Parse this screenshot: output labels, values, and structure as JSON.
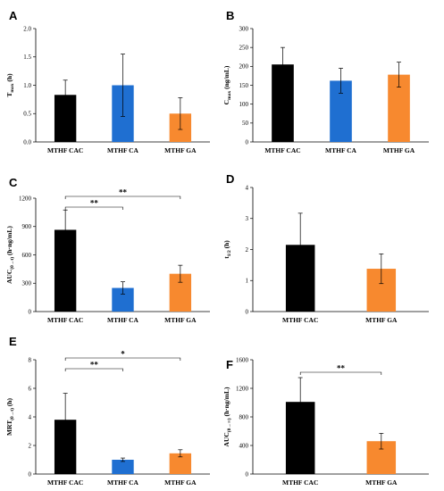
{
  "colors": {
    "MTHF CAC": "#000000",
    "MTHF CA": "#1f6fd1",
    "MTHF GA": "#f7892f"
  },
  "chart_data": [
    {
      "label": "A",
      "type": "bar",
      "categories": [
        "MTHF CAC",
        "MTHF CA",
        "MTHF GA"
      ],
      "values": [
        0.83,
        1.0,
        0.5
      ],
      "errors": [
        0.26,
        0.55,
        0.28
      ],
      "ylabel": "T",
      "ylabel_sub": "max",
      "ylabel_unit": " (h)",
      "ylim": [
        0,
        2.0
      ],
      "yticks": [
        "0.0",
        "0.5",
        "1.0",
        "1.5",
        "2.0"
      ],
      "significance": []
    },
    {
      "label": "B",
      "type": "bar",
      "categories": [
        "MTHF CAC",
        "MTHF CA",
        "MTHF GA"
      ],
      "values": [
        205,
        162,
        178
      ],
      "errors": [
        45,
        33,
        33
      ],
      "ylabel": "C",
      "ylabel_sub": "max",
      "ylabel_unit": " (ng/mL)",
      "ylim": [
        0,
        300
      ],
      "yticks": [
        "0",
        "50",
        "100",
        "150",
        "200",
        "250",
        "300"
      ],
      "significance": []
    },
    {
      "label": "C",
      "type": "bar",
      "categories": [
        "MTHF CAC",
        "MTHF CA",
        "MTHF GA"
      ],
      "values": [
        865,
        250,
        400
      ],
      "errors": [
        210,
        65,
        90
      ],
      "ylabel": "AUC",
      "ylabel_sub": "(0→t)",
      "ylabel_unit": " (h·ng/mL)",
      "ylim": [
        0,
        1200
      ],
      "yticks": [
        "0",
        "300",
        "600",
        "900",
        "1200"
      ],
      "significance": [
        {
          "from": 0,
          "to": 1,
          "label": "**",
          "level": 1
        },
        {
          "from": 0,
          "to": 2,
          "label": "**",
          "level": 2
        }
      ]
    },
    {
      "label": "D",
      "type": "bar",
      "categories": [
        "MTHF CAC",
        "MTHF GA"
      ],
      "values": [
        2.15,
        1.38
      ],
      "errors": [
        1.02,
        0.48
      ],
      "ylabel": "t",
      "ylabel_sub": "1/2",
      "ylabel_unit": " (h)",
      "ylim": [
        0,
        4
      ],
      "yticks": [
        "0",
        "1",
        "2",
        "3",
        "4"
      ],
      "significance": []
    },
    {
      "label": "E",
      "type": "bar",
      "categories": [
        "MTHF CAC",
        "MTHF CA",
        "MTHF GA"
      ],
      "values": [
        3.8,
        1.0,
        1.45
      ],
      "errors": [
        1.85,
        0.12,
        0.25
      ],
      "ylabel": "MRT",
      "ylabel_sub": "(0→t)",
      "ylabel_unit": " (h)",
      "ylim": [
        0,
        8
      ],
      "yticks": [
        "0",
        "2",
        "4",
        "6",
        "8"
      ],
      "significance": [
        {
          "from": 0,
          "to": 1,
          "label": "**",
          "level": 1
        },
        {
          "from": 0,
          "to": 2,
          "label": "*",
          "level": 2
        }
      ]
    },
    {
      "label": "F",
      "type": "bar",
      "categories": [
        "MTHF CAC",
        "MTHF GA"
      ],
      "values": [
        1010,
        460
      ],
      "errors": [
        340,
        110
      ],
      "ylabel": "AUC",
      "ylabel_sub": "(0→∞)",
      "ylabel_unit": " (h·ng/mL)",
      "ylim": [
        0,
        1600
      ],
      "yticks": [
        "0",
        "400",
        "800",
        "1200",
        "1600"
      ],
      "significance": [
        {
          "from": 0,
          "to": 1,
          "label": "**",
          "level": 1
        }
      ]
    }
  ]
}
